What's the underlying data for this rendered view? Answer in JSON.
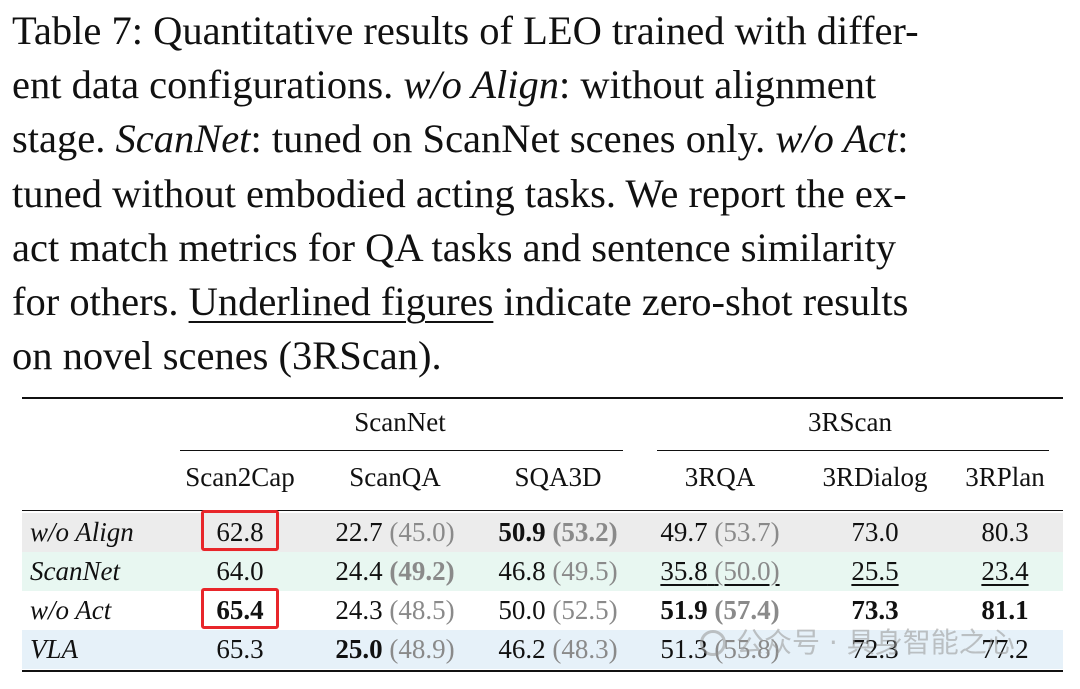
{
  "caption": {
    "lines": [
      [
        "Table 7: Quantitative results of LEO trained with differ-"
      ],
      [
        "ent data configurations. ",
        {
          "i": "w/o Align"
        },
        ": without alignment"
      ],
      [
        "stage. ",
        {
          "i": "ScanNet"
        },
        ": tuned on ScanNet scenes only. ",
        {
          "i": "w/o Act"
        },
        ":"
      ],
      [
        "tuned without embodied acting tasks. We report the ex-"
      ],
      [
        "act match metrics for QA tasks and sentence similarity"
      ],
      [
        "for others. ",
        {
          "u": "Underlined figures"
        },
        " indicate zero-shot results"
      ],
      [
        "on novel scenes (3RScan)."
      ]
    ]
  },
  "table": {
    "group_headers": [
      "ScanNet",
      "3RScan"
    ],
    "columns": [
      "Scan2Cap",
      "ScanQA",
      "SQA3D",
      "3RQA",
      "3RDialog",
      "3RPlan"
    ],
    "rows": [
      {
        "label": "w/o Align",
        "bg": "#ececec",
        "cells": [
          {
            "v": "62.8",
            "box": true
          },
          {
            "v": "22.7",
            "p": "(45.0)"
          },
          {
            "v": "50.9",
            "vb": true,
            "p": "(53.2)",
            "pb": true
          },
          {
            "v": "49.7",
            "p": "(53.7)"
          },
          {
            "v": "73.0"
          },
          {
            "v": "80.3"
          }
        ]
      },
      {
        "label": "ScanNet",
        "bg": "#e8f7f1",
        "cells": [
          {
            "v": "64.0"
          },
          {
            "v": "24.4",
            "p": "(49.2)",
            "pb": true
          },
          {
            "v": "46.8",
            "p": "(49.5)"
          },
          {
            "v": "35.8",
            "p": "(50.0)",
            "u": true
          },
          {
            "v": "25.5",
            "u": true
          },
          {
            "v": "23.4",
            "u": true
          }
        ]
      },
      {
        "label": "w/o Act",
        "bg": "#ffffff",
        "cells": [
          {
            "v": "65.4",
            "vb": true,
            "box": true
          },
          {
            "v": "24.3",
            "p": "(48.5)"
          },
          {
            "v": "50.0",
            "p": "(52.5)"
          },
          {
            "v": "51.9",
            "vb": true,
            "p": "(57.4)",
            "pb": true
          },
          {
            "v": "73.3",
            "vb": true
          },
          {
            "v": "81.1",
            "vb": true
          }
        ]
      },
      {
        "label": "VLA",
        "bg": "#e6f1f9",
        "cells": [
          {
            "v": "65.3"
          },
          {
            "v": "25.0",
            "vb": true,
            "p": "(48.9)"
          },
          {
            "v": "46.2",
            "p": "(48.3)"
          },
          {
            "v": "51.3",
            "p": "(55.8)"
          },
          {
            "v": "72.3"
          },
          {
            "v": "77.2"
          }
        ]
      }
    ]
  },
  "watermark": "公众号 · 具身智能之心",
  "colors": {
    "highlight_box": "#e8262a",
    "paren_text": "#8a8a8a"
  }
}
